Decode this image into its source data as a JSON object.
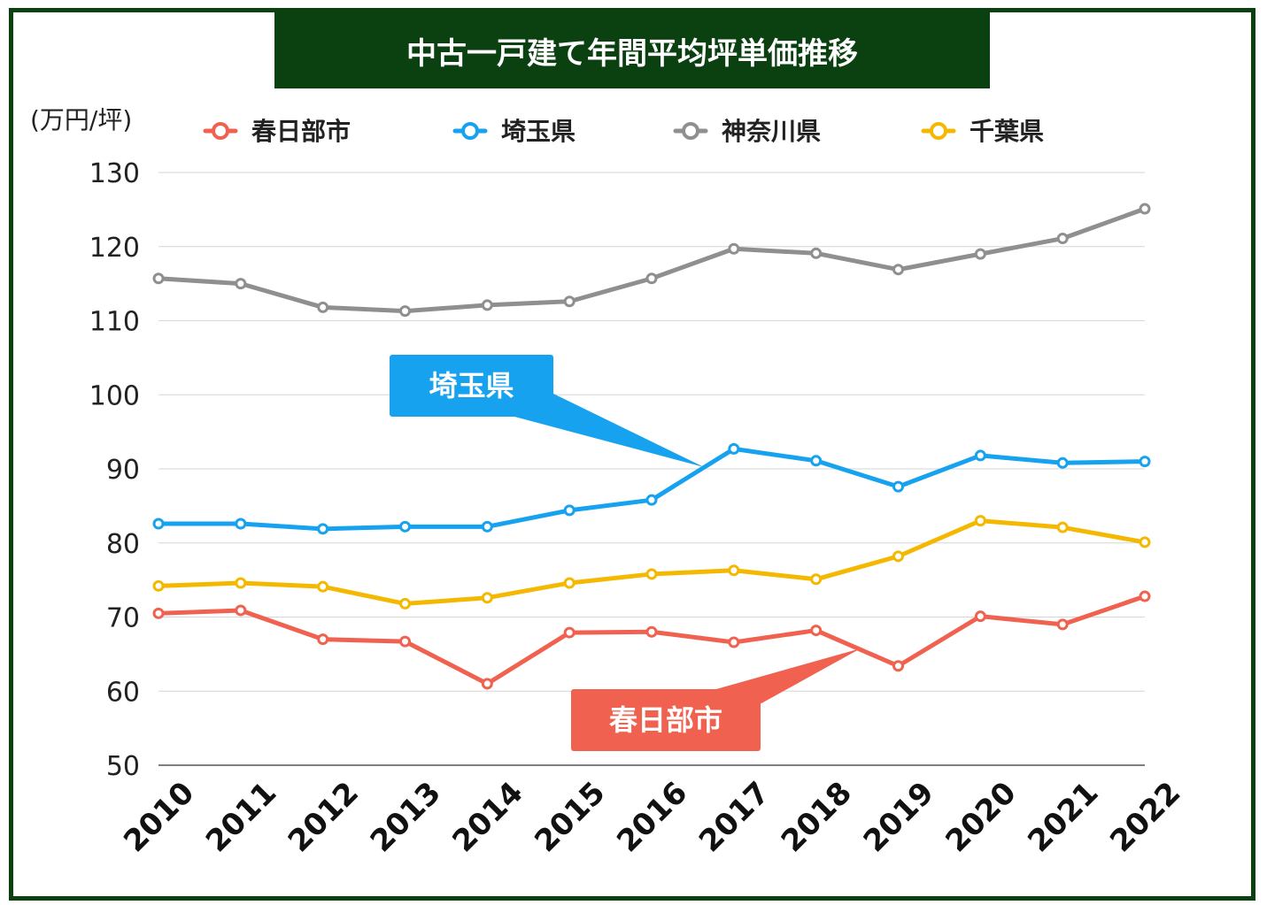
{
  "chart_data": {
    "type": "line",
    "title": "中古一戸建て年間平均坪単価推移",
    "unit": "(万円/坪)",
    "x": [
      "2010",
      "2011",
      "2012",
      "2013",
      "2014",
      "2015",
      "2016",
      "2017",
      "2018",
      "2019",
      "2020",
      "2021",
      "2022"
    ],
    "ylim": [
      50,
      130
    ],
    "yticks": [
      50,
      60,
      70,
      80,
      90,
      100,
      110,
      120,
      130
    ],
    "grid": true,
    "legend_position": "top",
    "series": [
      {
        "name": "春日部市",
        "color": "#f0624f",
        "values": [
          70.5,
          70.9,
          67.0,
          66.7,
          61.0,
          67.9,
          68.0,
          66.6,
          68.2,
          63.4,
          70.1,
          69.0,
          72.8
        ]
      },
      {
        "name": "埼玉県",
        "color": "#17a2f0",
        "values": [
          82.6,
          82.6,
          81.9,
          82.2,
          82.2,
          84.4,
          85.8,
          92.7,
          91.1,
          87.6,
          91.8,
          90.8,
          91.0
        ]
      },
      {
        "name": "神奈川県",
        "color": "#8f8f8f",
        "values": [
          115.7,
          115.0,
          111.8,
          111.3,
          112.1,
          112.6,
          115.7,
          119.7,
          119.1,
          116.9,
          119.0,
          121.1,
          125.1
        ]
      },
      {
        "name": "千葉県",
        "color": "#f5b800",
        "values": [
          74.2,
          74.6,
          74.1,
          71.8,
          72.6,
          74.6,
          75.8,
          76.3,
          75.1,
          78.2,
          83.0,
          82.1,
          80.1
        ]
      }
    ],
    "annotations": [
      {
        "text": "埼玉県",
        "series": "埼玉県",
        "color": "#17a2f0"
      },
      {
        "text": "春日部市",
        "series": "春日部市",
        "color": "#f0624f"
      }
    ]
  }
}
